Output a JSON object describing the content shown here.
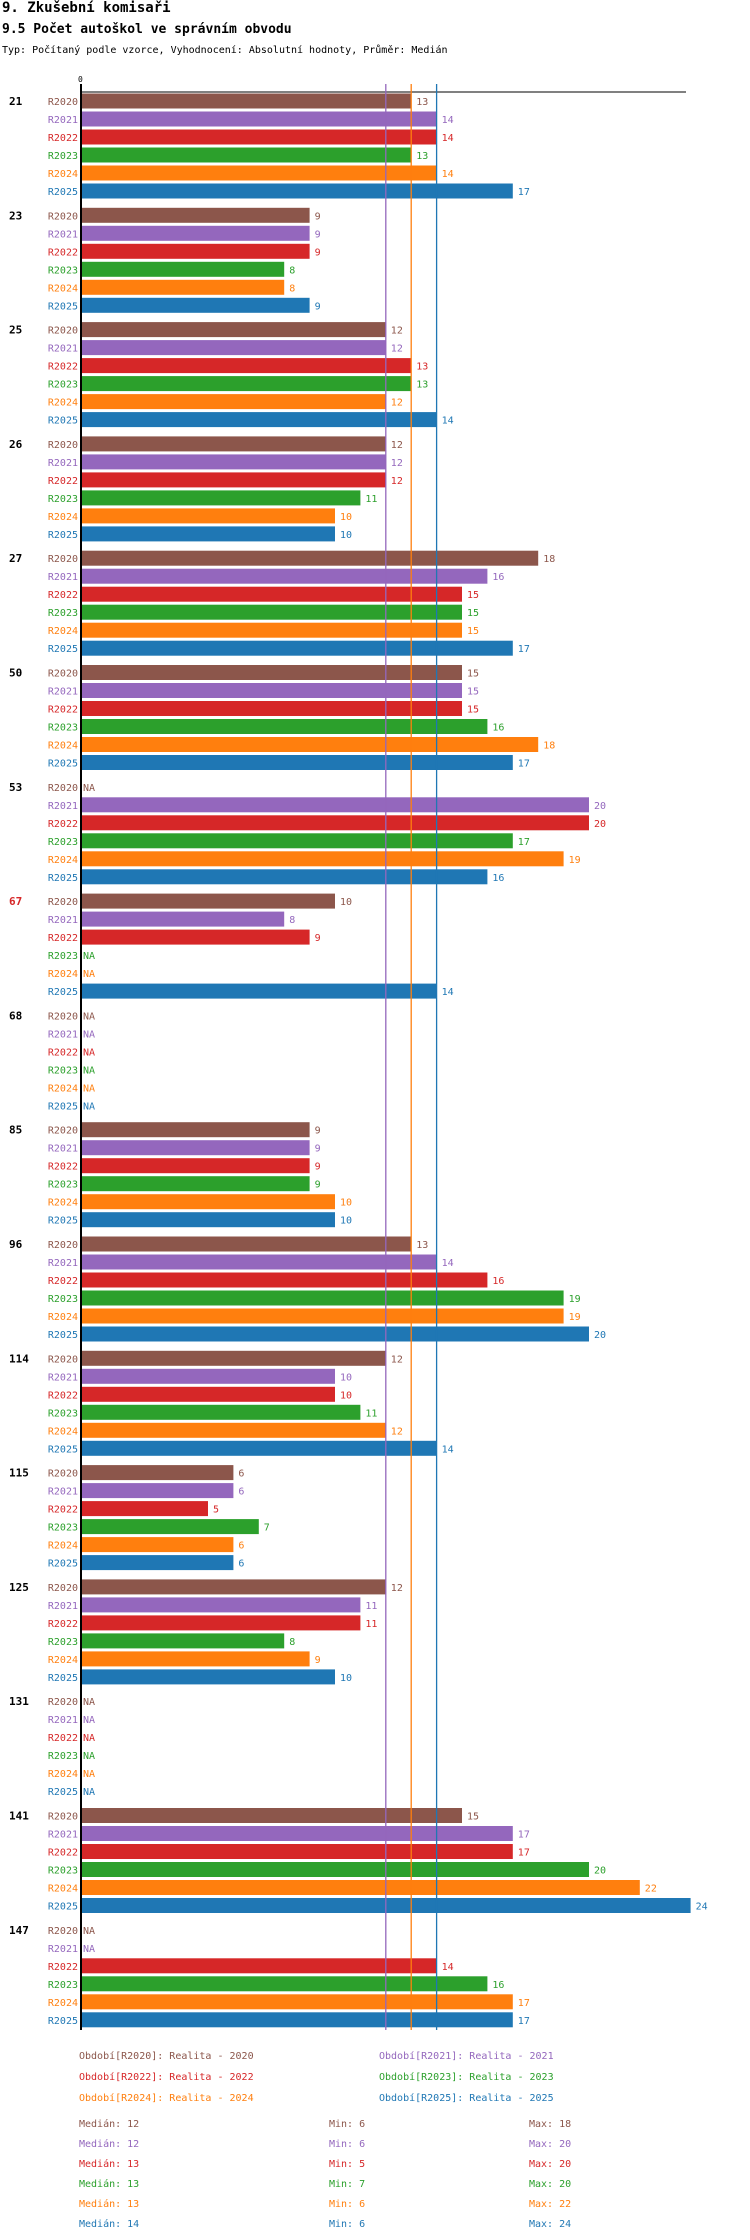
{
  "header": {
    "title": "9. Zkušební komisaři",
    "subtitle": "9.5 Počet autoškol ve správním obvodu",
    "type_line": "Typ: Počítaný podle vzorce, Vyhodnocení: Absolutní hodnoty, Průměr: Medián"
  },
  "chart_data": {
    "type": "bar",
    "orientation": "horizontal",
    "x_tick_label": "0",
    "x_min": 0,
    "na_label": "NA",
    "series": [
      {
        "name": "R2020",
        "color": "#8c564b"
      },
      {
        "name": "R2021",
        "color": "#9467bd"
      },
      {
        "name": "R2022",
        "color": "#d62728"
      },
      {
        "name": "R2023",
        "color": "#2ca02c"
      },
      {
        "name": "R2024",
        "color": "#ff7f0e"
      },
      {
        "name": "R2025",
        "color": "#1f77b4"
      }
    ],
    "groups": [
      {
        "label": "21",
        "highlight": false,
        "values": [
          13,
          14,
          14,
          13,
          14,
          17
        ]
      },
      {
        "label": "23",
        "highlight": false,
        "values": [
          9,
          9,
          9,
          8,
          8,
          9
        ]
      },
      {
        "label": "25",
        "highlight": false,
        "values": [
          12,
          12,
          13,
          13,
          12,
          14
        ]
      },
      {
        "label": "26",
        "highlight": false,
        "values": [
          12,
          12,
          12,
          11,
          10,
          10
        ]
      },
      {
        "label": "27",
        "highlight": false,
        "values": [
          18,
          16,
          15,
          15,
          15,
          17
        ]
      },
      {
        "label": "50",
        "highlight": false,
        "values": [
          15,
          15,
          15,
          16,
          18,
          17
        ]
      },
      {
        "label": "53",
        "highlight": false,
        "values": [
          null,
          20,
          20,
          17,
          19,
          16
        ]
      },
      {
        "label": "67",
        "highlight": true,
        "values": [
          10,
          8,
          9,
          null,
          null,
          14
        ]
      },
      {
        "label": "68",
        "highlight": false,
        "values": [
          null,
          null,
          null,
          null,
          null,
          null
        ]
      },
      {
        "label": "85",
        "highlight": false,
        "values": [
          9,
          9,
          9,
          9,
          10,
          10
        ]
      },
      {
        "label": "96",
        "highlight": false,
        "values": [
          13,
          14,
          16,
          19,
          19,
          20
        ]
      },
      {
        "label": "114",
        "highlight": false,
        "values": [
          12,
          10,
          10,
          11,
          12,
          14
        ]
      },
      {
        "label": "115",
        "highlight": false,
        "values": [
          6,
          6,
          5,
          7,
          6,
          6
        ]
      },
      {
        "label": "125",
        "highlight": false,
        "values": [
          12,
          11,
          11,
          8,
          9,
          10
        ]
      },
      {
        "label": "131",
        "highlight": false,
        "values": [
          null,
          null,
          null,
          null,
          null,
          null
        ]
      },
      {
        "label": "141",
        "highlight": false,
        "values": [
          15,
          17,
          17,
          20,
          22,
          24
        ]
      },
      {
        "label": "147",
        "highlight": false,
        "values": [
          null,
          null,
          14,
          16,
          17,
          17
        ]
      }
    ],
    "median_lines": [
      {
        "value": 12,
        "color": "#9467bd"
      },
      {
        "value": 13,
        "color": "#ff7f0e"
      },
      {
        "value": 14,
        "color": "#1f77b4"
      }
    ],
    "legend": [
      {
        "text": "Období[R2020]: Realita - 2020",
        "color": "#8c564b"
      },
      {
        "text": "Období[R2021]: Realita - 2021",
        "color": "#9467bd"
      },
      {
        "text": "Období[R2022]: Realita - 2022",
        "color": "#d62728"
      },
      {
        "text": "Období[R2023]: Realita - 2023",
        "color": "#2ca02c"
      },
      {
        "text": "Období[R2024]: Realita - 2024",
        "color": "#ff7f0e"
      },
      {
        "text": "Období[R2025]: Realita - 2025",
        "color": "#1f77b4"
      }
    ],
    "stats": [
      {
        "median": "Medián: 12",
        "min": "Min: 6",
        "max": "Max: 18",
        "color": "#8c564b"
      },
      {
        "median": "Medián: 12",
        "min": "Min: 6",
        "max": "Max: 20",
        "color": "#9467bd"
      },
      {
        "median": "Medián: 13",
        "min": "Min: 5",
        "max": "Max: 20",
        "color": "#d62728"
      },
      {
        "median": "Medián: 13",
        "min": "Min: 7",
        "max": "Max: 20",
        "color": "#2ca02c"
      },
      {
        "median": "Medián: 13",
        "min": "Min: 6",
        "max": "Max: 22",
        "color": "#ff7f0e"
      },
      {
        "median": "Medián: 14",
        "min": "Min: 6",
        "max": "Max: 24",
        "color": "#1f77b4"
      }
    ]
  }
}
